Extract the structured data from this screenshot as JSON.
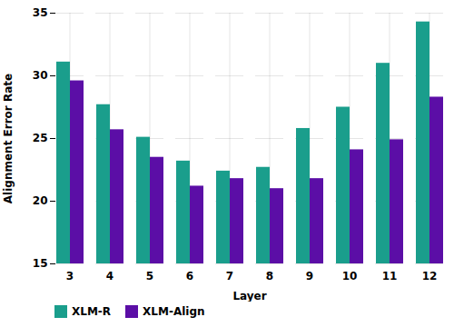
{
  "chart_data": {
    "type": "bar",
    "xlabel": "Layer",
    "ylabel": "Alignment Error Rate",
    "categories": [
      3,
      4,
      5,
      6,
      7,
      8,
      9,
      10,
      11,
      12
    ],
    "series": [
      {
        "name": "XLM-R",
        "color": "#1a9e8c",
        "values": [
          31.1,
          27.7,
          25.1,
          23.2,
          22.4,
          22.7,
          25.8,
          27.5,
          31.0,
          34.3
        ]
      },
      {
        "name": "XLM-Align",
        "color": "#5b0ea6",
        "values": [
          29.6,
          25.7,
          23.5,
          21.2,
          21.8,
          21.0,
          21.8,
          24.1,
          24.9,
          28.3
        ]
      }
    ],
    "ylim": [
      15,
      35
    ],
    "yticks": [
      15,
      20,
      25,
      30,
      35
    ],
    "grid": true,
    "legend": "lower left"
  }
}
